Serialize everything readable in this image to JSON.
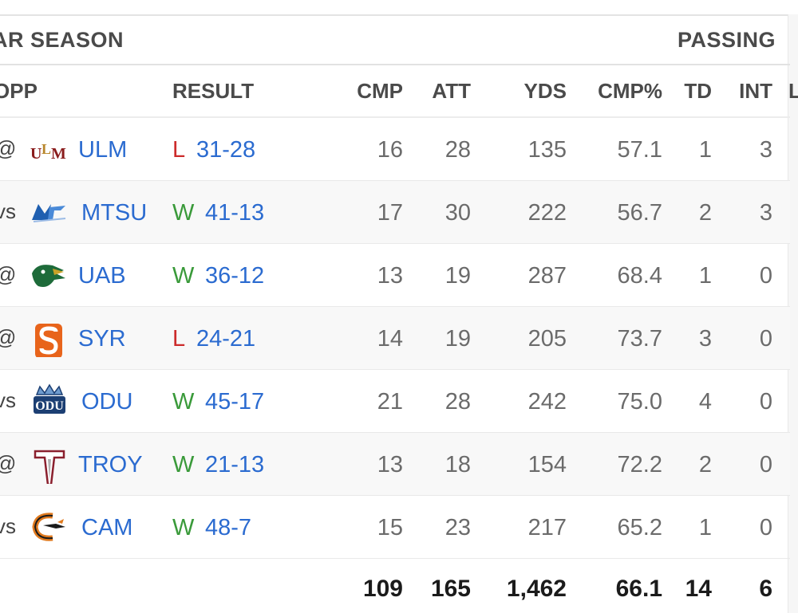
{
  "header": {
    "season_label": "AR SEASON",
    "section_label": "PASSING"
  },
  "columns": {
    "opp": "OPP",
    "result": "RESULT",
    "cmp": "CMP",
    "att": "ATT",
    "yds": "YDS",
    "cmp_pct": "CMP%",
    "td": "TD",
    "int": "INT",
    "extra": "L"
  },
  "games": [
    {
      "loc": "@",
      "team": "ULM",
      "logo": "ulm-logo",
      "wl": "L",
      "score": "31-28",
      "cmp": "16",
      "att": "28",
      "yds": "135",
      "pct": "57.1",
      "td": "1",
      "int": "3"
    },
    {
      "loc": "vs",
      "team": "MTSU",
      "logo": "mtsu-logo",
      "wl": "W",
      "score": "41-13",
      "cmp": "17",
      "att": "30",
      "yds": "222",
      "pct": "56.7",
      "td": "2",
      "int": "3"
    },
    {
      "loc": "@",
      "team": "UAB",
      "logo": "uab-logo",
      "wl": "W",
      "score": "36-12",
      "cmp": "13",
      "att": "19",
      "yds": "287",
      "pct": "68.4",
      "td": "1",
      "int": "0"
    },
    {
      "loc": "@",
      "team": "SYR",
      "logo": "syr-logo",
      "wl": "L",
      "score": "24-21",
      "cmp": "14",
      "att": "19",
      "yds": "205",
      "pct": "73.7",
      "td": "3",
      "int": "0"
    },
    {
      "loc": "vs",
      "team": "ODU",
      "logo": "odu-logo",
      "wl": "W",
      "score": "45-17",
      "cmp": "21",
      "att": "28",
      "yds": "242",
      "pct": "75.0",
      "td": "4",
      "int": "0"
    },
    {
      "loc": "@",
      "team": "TROY",
      "logo": "troy-logo",
      "wl": "W",
      "score": "21-13",
      "cmp": "13",
      "att": "18",
      "yds": "154",
      "pct": "72.2",
      "td": "2",
      "int": "0"
    },
    {
      "loc": "vs",
      "team": "CAM",
      "logo": "cam-logo",
      "wl": "W",
      "score": "48-7",
      "cmp": "15",
      "att": "23",
      "yds": "217",
      "pct": "65.2",
      "td": "1",
      "int": "0"
    }
  ],
  "totals": {
    "cmp": "109",
    "att": "165",
    "yds": "1,462",
    "pct": "66.1",
    "td": "14",
    "int": "6"
  },
  "colors": {
    "link": "#2b6bd0",
    "win": "#3a9a3a",
    "loss": "#cc2b2b",
    "row_alt": "#f8f8f8"
  }
}
